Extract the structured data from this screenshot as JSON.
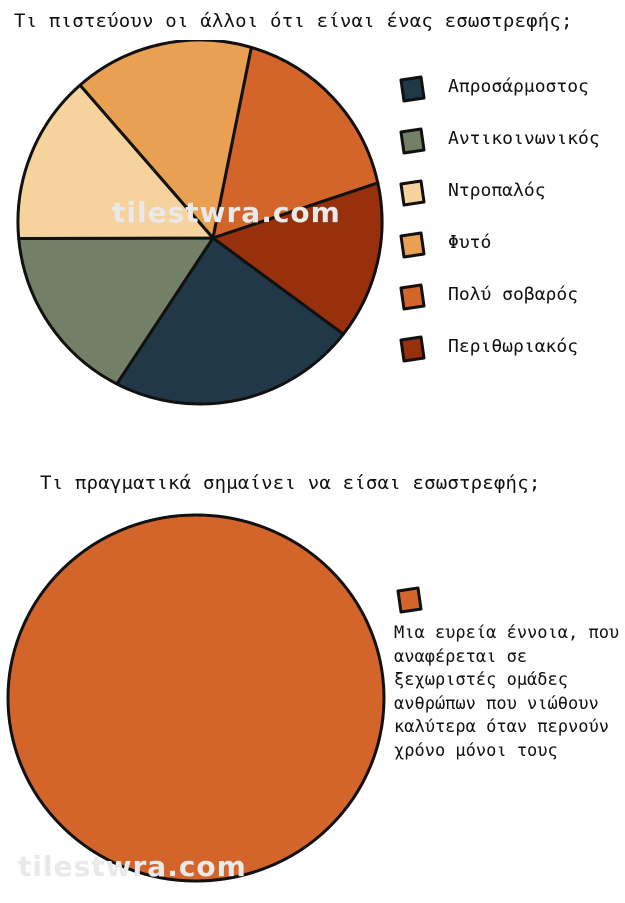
{
  "chart_data": [
    {
      "type": "pie",
      "title": "Τι πιστεύουν οι άλλοι ότι είναι ένας εσωστρεφής;",
      "categories": [
        "Απροσάρμοστος",
        "Αντικοινωνικός",
        "Ντροπαλός",
        "Φυτό",
        "Πολύ σοβαρός",
        "Περιθωριακός"
      ],
      "values": [
        22,
        16,
        15,
        16,
        17,
        14
      ],
      "colors": [
        "#213848",
        "#737f66",
        "#f6d29d",
        "#eaa052",
        "#d4652a",
        "#982f0d"
      ],
      "legend_position": "right"
    },
    {
      "type": "pie",
      "title": "Τι πραγματικά σημαίνει να είσαι εσωστρεφής;",
      "categories": [
        "Μια ευρεία έννοια, που αναφέρεται σε ξεχωριστές ομάδες ανθρώπων που νιώθουν καλύτερα όταν περνούν χρόνο μόνοι τους"
      ],
      "values": [
        100
      ],
      "colors": [
        "#d4652a"
      ],
      "legend_position": "right"
    }
  ],
  "watermark": "tilestwra.com"
}
